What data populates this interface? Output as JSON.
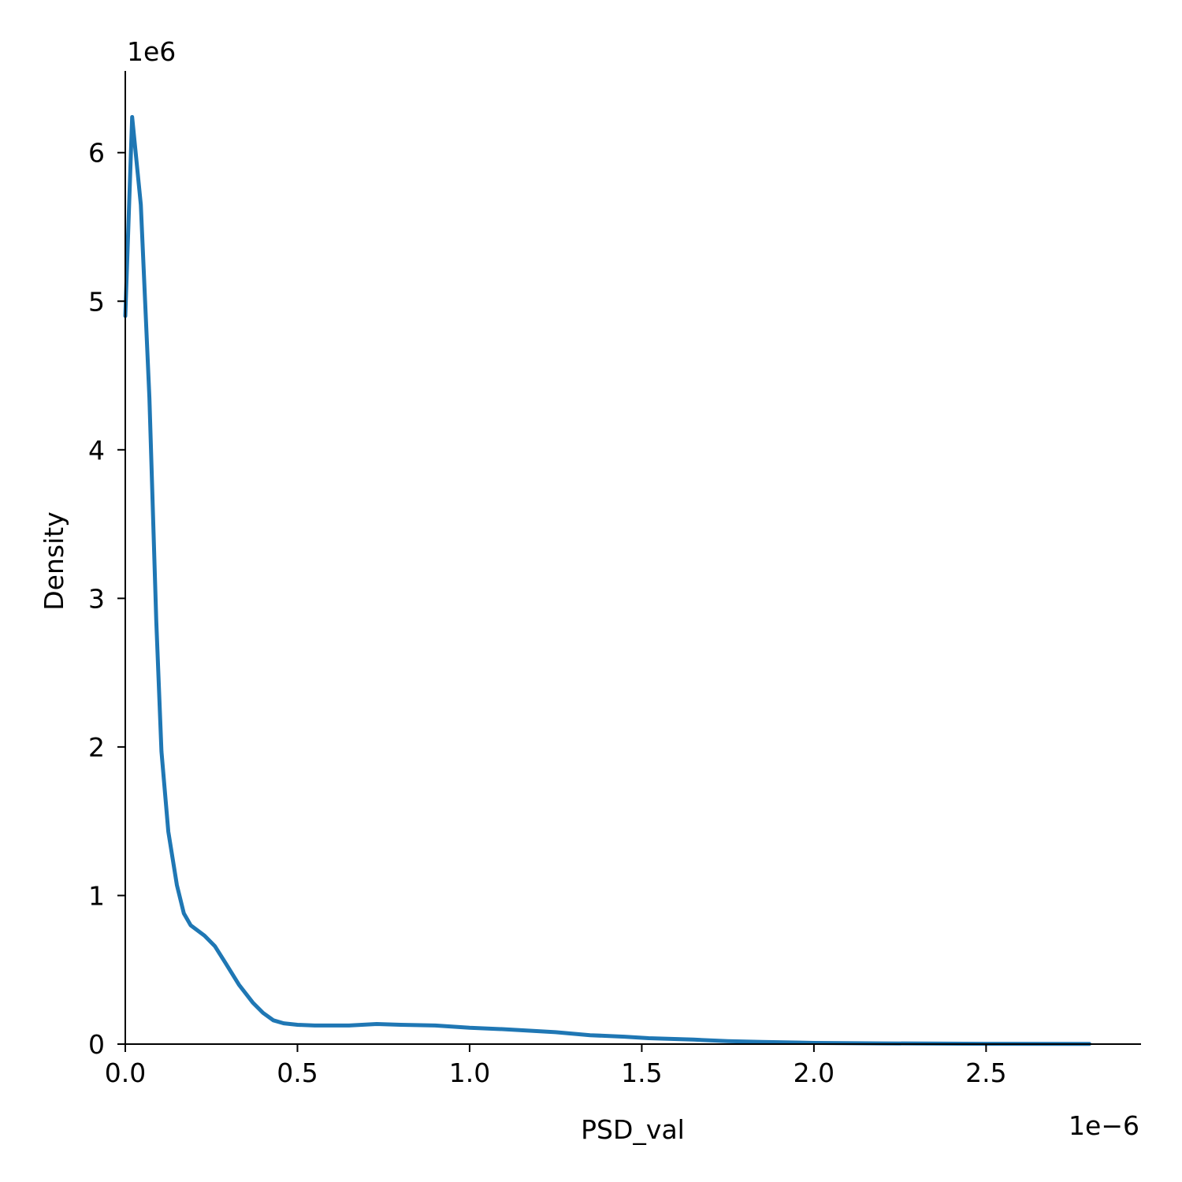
{
  "chart_data": {
    "type": "line",
    "title": "",
    "xlabel": "PSD_val",
    "ylabel": "Density",
    "x_offset_text": "1e−6",
    "y_offset_text": "1e6",
    "xlim": [
      0,
      2.95
    ],
    "ylim": [
      0,
      6.55
    ],
    "x_ticks": [
      0,
      0.5,
      1.0,
      1.5,
      2.0,
      2.5
    ],
    "x_tick_labels": [
      "0.0",
      "0.5",
      "1.0",
      "1.5",
      "2.0",
      "2.5"
    ],
    "y_ticks": [
      0,
      1,
      2,
      3,
      4,
      5,
      6
    ],
    "y_tick_labels": [
      "0",
      "1",
      "2",
      "3",
      "4",
      "5",
      "6"
    ],
    "grid": false,
    "line_color": "#1f77b4",
    "series": [
      {
        "x": [
          0.0,
          0.02,
          0.045,
          0.07,
          0.09,
          0.105,
          0.125,
          0.15,
          0.17,
          0.19,
          0.23,
          0.26,
          0.29,
          0.33,
          0.37,
          0.4,
          0.43,
          0.46,
          0.5,
          0.55,
          0.65,
          0.73,
          0.8,
          0.9,
          1.0,
          1.1,
          1.25,
          1.35,
          1.45,
          1.52,
          1.65,
          1.75,
          1.85,
          2.0,
          2.2,
          2.5,
          2.8
        ],
        "y": [
          4.9,
          6.24,
          5.65,
          4.35,
          2.85,
          1.97,
          1.43,
          1.07,
          0.88,
          0.8,
          0.73,
          0.66,
          0.55,
          0.4,
          0.28,
          0.21,
          0.16,
          0.14,
          0.13,
          0.125,
          0.125,
          0.135,
          0.13,
          0.125,
          0.11,
          0.1,
          0.08,
          0.06,
          0.05,
          0.04,
          0.03,
          0.02,
          0.015,
          0.008,
          0.005,
          0.002,
          0.001
        ]
      }
    ]
  }
}
